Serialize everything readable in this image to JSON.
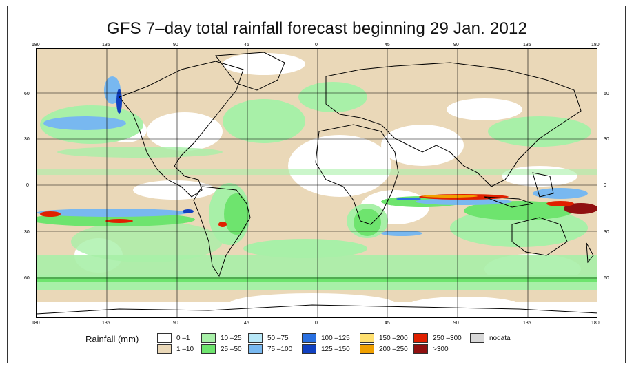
{
  "title": "GFS 7–day total rainfall forecast beginning 29 Jan. 2012",
  "axes": {
    "top_ticks": [
      "180",
      "135",
      "90",
      "45",
      "0",
      "45",
      "90",
      "135",
      "180"
    ],
    "bottom_ticks": [
      "180",
      "135",
      "90",
      "45",
      "0",
      "45",
      "90",
      "135",
      "180"
    ],
    "left_ticks": [
      "60",
      "30",
      "0",
      "30",
      "60"
    ],
    "right_ticks": [
      "60",
      "30",
      "0",
      "30",
      "60"
    ]
  },
  "legend": {
    "title": "Rainfall (mm)",
    "items": [
      {
        "label": "0 –1",
        "color": "#ffffff"
      },
      {
        "label": "1 –10",
        "color": "#ead8b8"
      },
      {
        "label": "10 –25",
        "color": "#a8f0a8"
      },
      {
        "label": "25 –50",
        "color": "#6ee46e"
      },
      {
        "label": "50 –75",
        "color": "#b8e8f8"
      },
      {
        "label": "75 –100",
        "color": "#78b8f0"
      },
      {
        "label": "100 –125",
        "color": "#2a70e0"
      },
      {
        "label": "125 –150",
        "color": "#1040c0"
      },
      {
        "label": "150 –200",
        "color": "#ffe070"
      },
      {
        "label": "200 –250",
        "color": "#f0a000"
      },
      {
        "label": "250 –300",
        "color": "#e02000"
      },
      {
        "label": ">300",
        "color": "#901010"
      },
      {
        "label": "nodata",
        "color": "#d8d8d8"
      }
    ]
  }
}
